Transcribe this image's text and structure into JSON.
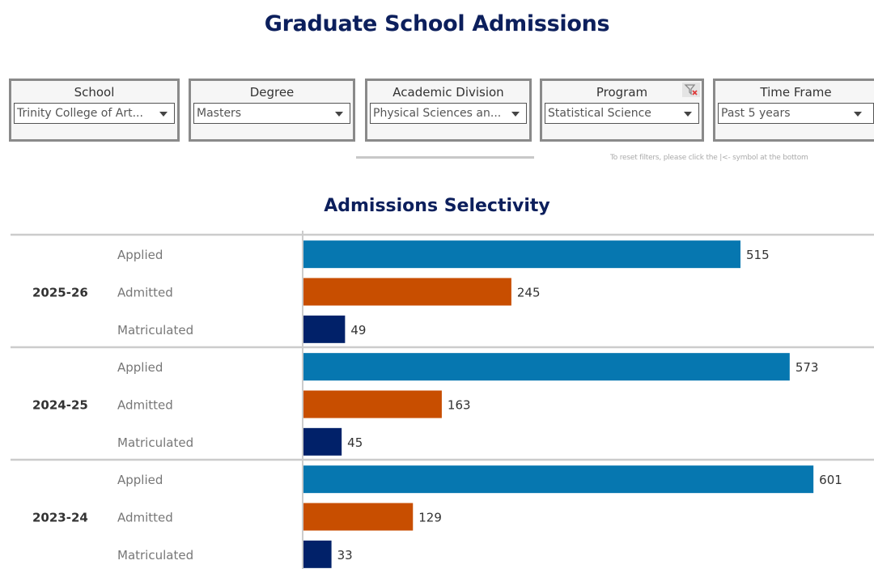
{
  "header": {
    "title": "Graduate School Admissions"
  },
  "filters": [
    {
      "label": "School",
      "value": "Trinity College of Art...",
      "has_clear_icon": false
    },
    {
      "label": "Degree",
      "value": "Masters",
      "has_clear_icon": false
    },
    {
      "label": "Academic Division",
      "value": "Physical Sciences an...",
      "has_clear_icon": false
    },
    {
      "label": "Program",
      "value": "Statistical Science",
      "has_clear_icon": true
    },
    {
      "label": "Time Frame",
      "value": "Past 5 years",
      "has_clear_icon": false
    }
  ],
  "reset_note": "To reset filters, please click the |<- symbol at the bottom",
  "icons": {
    "dropdown": "chevron-down-icon",
    "clear_filter": "clear-filter-icon"
  },
  "colors": {
    "title": "#0c1f5c",
    "applied": "#0677b0",
    "admitted": "#c84e00",
    "matriculated": "#012169",
    "gridline": "#cccccc"
  },
  "chart_data": {
    "type": "bar",
    "orientation": "horizontal",
    "title": "Admissions Selectivity",
    "xlabel": "",
    "ylabel": "",
    "grid": false,
    "legend": "none",
    "groups": [
      "2025-26",
      "2024-25",
      "2023-24"
    ],
    "categories": [
      "Applied",
      "Admitted",
      "Matriculated"
    ],
    "series": [
      {
        "name": "Applied",
        "color": "#0677b0",
        "values": [
          515,
          573,
          601
        ]
      },
      {
        "name": "Admitted",
        "color": "#c84e00",
        "values": [
          245,
          163,
          129
        ]
      },
      {
        "name": "Matriculated",
        "color": "#012169",
        "values": [
          49,
          45,
          33
        ]
      }
    ],
    "xlim": [
      0,
      670
    ]
  }
}
